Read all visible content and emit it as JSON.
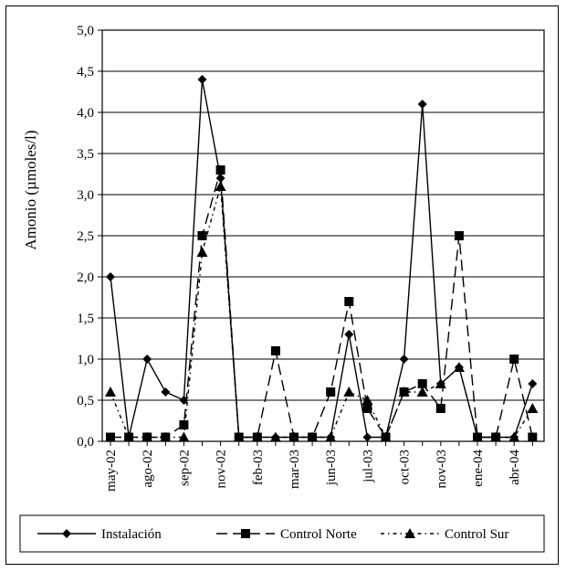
{
  "chart_data": {
    "type": "line",
    "title": "",
    "ylabel": "Amonio (µmoles/l)",
    "xlabel": "",
    "ylim": [
      0,
      5
    ],
    "yticks": [
      "0,0",
      "0,5",
      "1,0",
      "1,5",
      "2,0",
      "2,5",
      "3,0",
      "3,5",
      "4,0",
      "4,5",
      "5,0"
    ],
    "x_tick_labels": [
      {
        "label": "may-02",
        "index": 0
      },
      {
        "label": "ago-02",
        "index": 2
      },
      {
        "label": "sep-02",
        "index": 4
      },
      {
        "label": "nov-02",
        "index": 6
      },
      {
        "label": "feb-03",
        "index": 8
      },
      {
        "label": "mar-03",
        "index": 10
      },
      {
        "label": "jun-03",
        "index": 12
      },
      {
        "label": "jul-03",
        "index": 14
      },
      {
        "label": "oct-03",
        "index": 16
      },
      {
        "label": "nov-03",
        "index": 18
      },
      {
        "label": "ene-04",
        "index": 20
      },
      {
        "label": "abr-04",
        "index": 22
      }
    ],
    "point_count": 24,
    "grid": "horizontal",
    "legend_position": "bottom",
    "series": [
      {
        "name": "Instalación",
        "marker": "diamond",
        "dash": "solid",
        "values": [
          2.0,
          0.05,
          1.0,
          0.6,
          0.5,
          4.4,
          3.2,
          0.05,
          0.05,
          0.05,
          0.05,
          0.05,
          0.05,
          1.3,
          0.05,
          0.05,
          1.0,
          4.1,
          0.7,
          0.9,
          0.05,
          0.05,
          0.05,
          0.7
        ]
      },
      {
        "name": "Control Norte",
        "marker": "square",
        "dash": "long",
        "values": [
          0.05,
          0.05,
          0.05,
          0.05,
          0.2,
          2.5,
          3.3,
          0.05,
          0.05,
          1.1,
          0.05,
          0.05,
          0.6,
          1.7,
          0.4,
          0.05,
          0.6,
          0.7,
          0.4,
          2.5,
          0.05,
          0.05,
          1.0,
          0.05
        ]
      },
      {
        "name": "Control Sur",
        "marker": "triangle",
        "dash": "dashdot",
        "values": [
          0.6,
          0.05,
          0.05,
          0.05,
          0.05,
          2.3,
          3.1,
          0.05,
          0.05,
          0.05,
          0.05,
          0.05,
          0.05,
          0.6,
          0.5,
          0.05,
          0.6,
          0.6,
          0.7,
          0.9,
          0.05,
          0.05,
          0.05,
          0.4
        ]
      }
    ]
  }
}
